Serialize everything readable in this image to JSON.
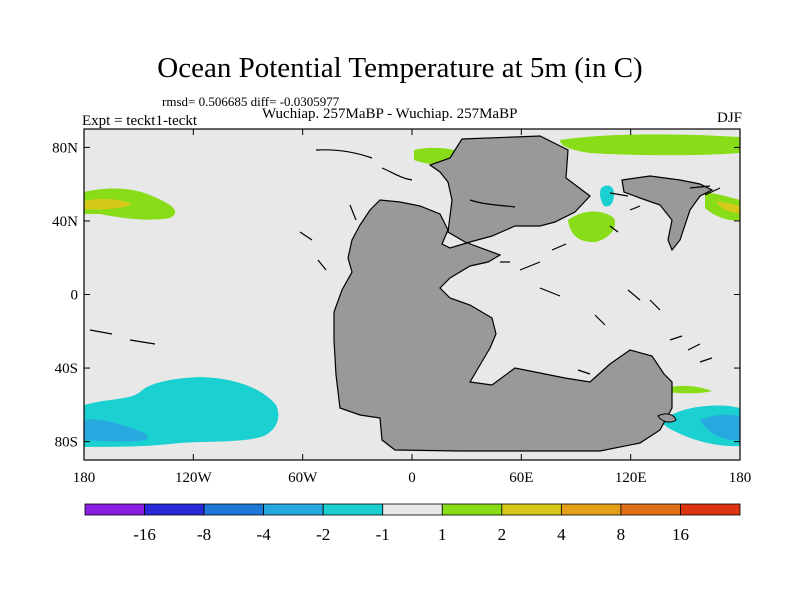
{
  "title": "Ocean Potential Temperature at 5m (in C)",
  "stats_line": "rmsd= 0.506685 diff= -0.0305977",
  "subtitle": "Wuchiap. 257MaBP - Wuchiap. 257MaBP",
  "left_label": "Expt = teckt1-teckt",
  "right_label": "DJF",
  "chart_data": {
    "type": "heatmap",
    "title": "Ocean Potential Temperature at 5m (in C)",
    "x_axis": {
      "range": [
        -180,
        180
      ],
      "ticks": [
        {
          "value": -180,
          "label": "180"
        },
        {
          "value": -120,
          "label": "120W"
        },
        {
          "value": -60,
          "label": "60W"
        },
        {
          "value": 0,
          "label": "0"
        },
        {
          "value": 60,
          "label": "60E"
        },
        {
          "value": 120,
          "label": "120E"
        },
        {
          "value": 180,
          "label": "180"
        }
      ]
    },
    "y_axis": {
      "range": [
        -90,
        90
      ],
      "ticks": [
        {
          "value": 80,
          "label": "80N"
        },
        {
          "value": 40,
          "label": "40N"
        },
        {
          "value": 0,
          "label": "0"
        },
        {
          "value": -40,
          "label": "40S"
        },
        {
          "value": -80,
          "label": "80S"
        }
      ]
    },
    "colorbar": {
      "boundaries": [
        "-16",
        "-8",
        "-4",
        "-2",
        "-1",
        "1",
        "2",
        "4",
        "8",
        "16"
      ],
      "colors": [
        "#8a1ee0",
        "#2a2ad8",
        "#1f78d8",
        "#27a9e0",
        "#1bd0d0",
        "#e8e8e8",
        "#88dd18",
        "#d8c818",
        "#e4a018",
        "#e07018",
        "#dc3410"
      ]
    },
    "land_color": "#999999",
    "ocean_color": "#e8e8e8",
    "regions": [
      {
        "name": "North Pacific warm patch",
        "category": "1 to 2",
        "color": "#88dd18"
      },
      {
        "name": "North Pacific warm core",
        "category": "2 to 4",
        "color": "#d8c818"
      },
      {
        "name": "Southern Ocean cool patch",
        "category": "-2 to -1",
        "color": "#1bd0d0"
      },
      {
        "name": "Southern Ocean cool core",
        "category": "-4 to -2",
        "color": "#27a9e0"
      },
      {
        "name": "Arctic warm patch",
        "category": "1 to 2",
        "color": "#88dd18"
      },
      {
        "name": "Tethys warm patch",
        "category": "1 to 2",
        "color": "#88dd18"
      },
      {
        "name": "East Asia cool patch",
        "category": "-2 to -1",
        "color": "#1bd0d0"
      },
      {
        "name": "East Panthalassa warm patch",
        "category": "2 to 4",
        "color": "#d8c818"
      },
      {
        "name": "South Pacific cool patch",
        "category": "-2 to -1",
        "color": "#1bd0d0"
      }
    ]
  }
}
